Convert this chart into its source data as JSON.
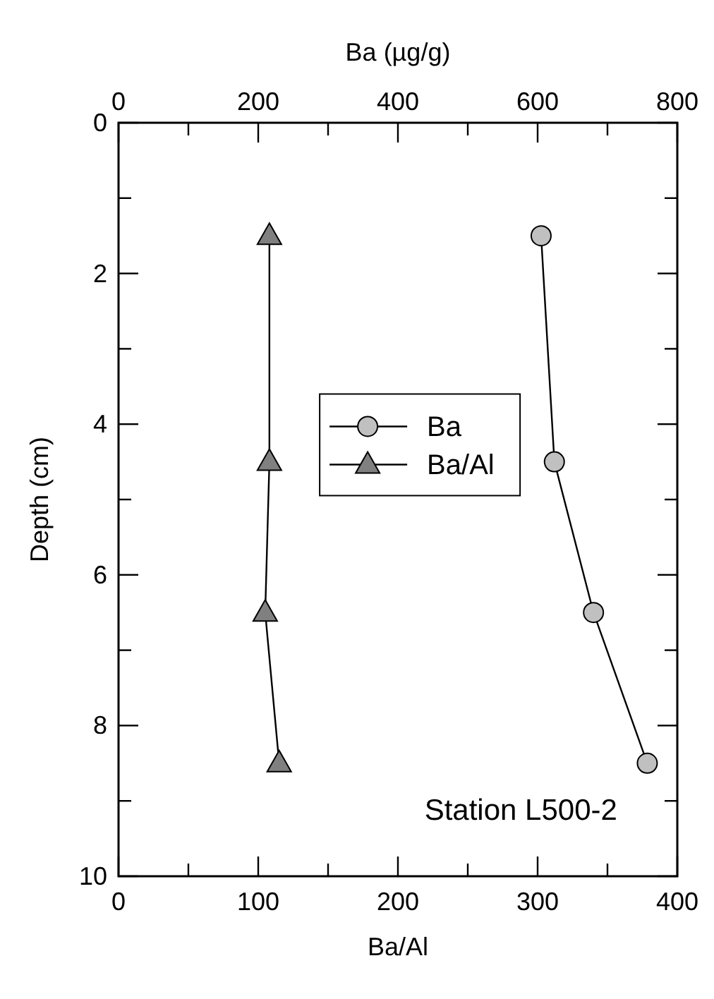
{
  "chart_data": {
    "type": "line",
    "xlabel": "Ba/Al",
    "x2label": "Ba (µg/g)",
    "ylabel": "Depth (cm)",
    "xlim": [
      0,
      400
    ],
    "xticks": [
      0,
      {
        "value": 50,
        "label": null
      },
      100,
      {
        "value": 150,
        "label": null
      },
      200,
      {
        "value": 250,
        "label": null
      },
      300,
      {
        "value": 350,
        "label": null
      },
      400
    ],
    "x2lim": [
      0,
      800
    ],
    "x2ticks": [
      0,
      {
        "value": 100,
        "label": null
      },
      200,
      {
        "value": 300,
        "label": null
      },
      400,
      {
        "value": 500,
        "label": null
      },
      600,
      {
        "value": 700,
        "label": null
      },
      800
    ],
    "ylim": [
      10,
      0
    ],
    "yticks": [
      0,
      {
        "value": 1,
        "label": null
      },
      2,
      {
        "value": 3,
        "label": null
      },
      4,
      {
        "value": 5,
        "label": null
      },
      6,
      {
        "value": 7,
        "label": null
      },
      8,
      {
        "value": 9,
        "label": null
      },
      10
    ],
    "series": [
      {
        "name": "Ba",
        "axis": "x2",
        "marker": "circle",
        "color": "#c0c0c0",
        "x": [
          605,
          624,
          680,
          757
        ],
        "values": [
          1.5,
          4.5,
          6.5,
          8.5
        ]
      },
      {
        "name": "Ba/Al",
        "marker": "triangle",
        "color": "#808080",
        "x": [
          108,
          108,
          105,
          115
        ],
        "values": [
          1.5,
          4.5,
          6.5,
          8.5
        ]
      }
    ],
    "legend": "center",
    "grid": false,
    "line_style": "solid",
    "annotations": [
      "Station L500-2"
    ]
  }
}
